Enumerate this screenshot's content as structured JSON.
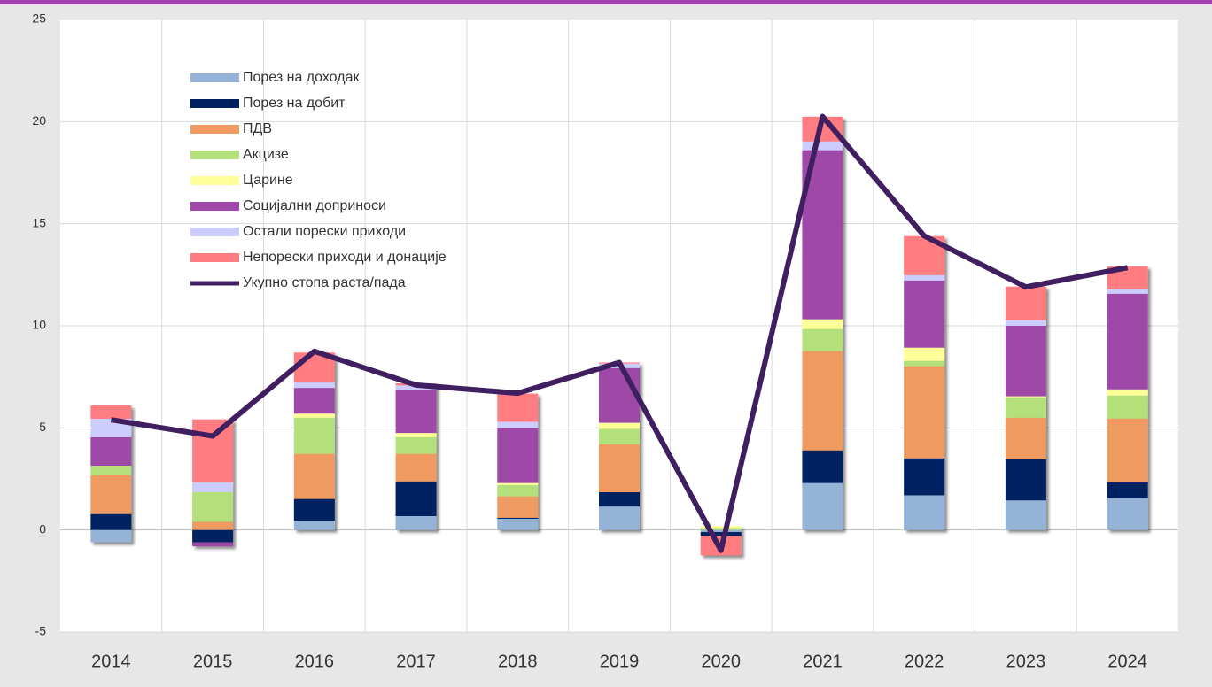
{
  "chart_data": {
    "type": "stacked_bar_line",
    "categories": [
      "2014",
      "2015",
      "2016",
      "2017",
      "2018",
      "2019",
      "2020",
      "2021",
      "2022",
      "2023",
      "2024"
    ],
    "series": [
      {
        "name": "Порез на доходак",
        "color": "#95b3d7",
        "values": [
          -0.6,
          0,
          0.45,
          0.68,
          0.55,
          1.15,
          -0.1,
          2.3,
          1.7,
          1.45,
          1.55
        ]
      },
      {
        "name": "Порез на добит",
        "color": "#002060",
        "values": [
          0.78,
          -0.6,
          1.07,
          1.7,
          0.05,
          0.7,
          -0.2,
          1.6,
          1.81,
          2.02,
          0.79
        ]
      },
      {
        "name": "ПДВ",
        "color": "#ee9a60",
        "values": [
          1.9,
          0.4,
          2.21,
          1.35,
          1.05,
          2.35,
          0,
          4.86,
          4.51,
          2.03,
          3.12
        ]
      },
      {
        "name": "Акцизе",
        "color": "#b3e07a",
        "values": [
          0.47,
          1.46,
          1.77,
          0.82,
          0.55,
          0.75,
          0.1,
          1.08,
          0.26,
          1.0,
          1.13
        ]
      },
      {
        "name": "Царине",
        "color": "#ffff99",
        "values": [
          0,
          0,
          0.2,
          0.2,
          0.1,
          0.3,
          0.1,
          0.48,
          0.65,
          0.05,
          0.3
        ]
      },
      {
        "name": "Социјални доприноси",
        "color": "#9e48a8",
        "values": [
          1.39,
          -0.2,
          1.26,
          2.13,
          2.7,
          2.68,
          0,
          8.28,
          3.29,
          3.45,
          4.68
        ]
      },
      {
        "name": "Остали порески приходи",
        "color": "#ccccff",
        "values": [
          0.91,
          0.48,
          0.26,
          0.2,
          0.3,
          0.22,
          0,
          0.43,
          0.26,
          0.27,
          0.22
        ]
      },
      {
        "name": "Непорески приходи и донације",
        "color": "#ff7c80",
        "values": [
          0.65,
          3.08,
          1.47,
          0.1,
          1.38,
          0.05,
          -0.95,
          1.21,
          1.91,
          1.65,
          1.13
        ]
      },
      {
        "name": "Укупно стопа раста/пада",
        "type": "line",
        "color": "#3f1f5f",
        "values": [
          5.4,
          4.6,
          8.75,
          7.1,
          6.7,
          8.2,
          -1.0,
          20.25,
          14.4,
          11.9,
          12.85
        ]
      }
    ],
    "ylim": [
      -5,
      25
    ],
    "yticks": [
      -5,
      0,
      5,
      10,
      15,
      20,
      25
    ],
    "grid": true,
    "legend": "upper left"
  }
}
